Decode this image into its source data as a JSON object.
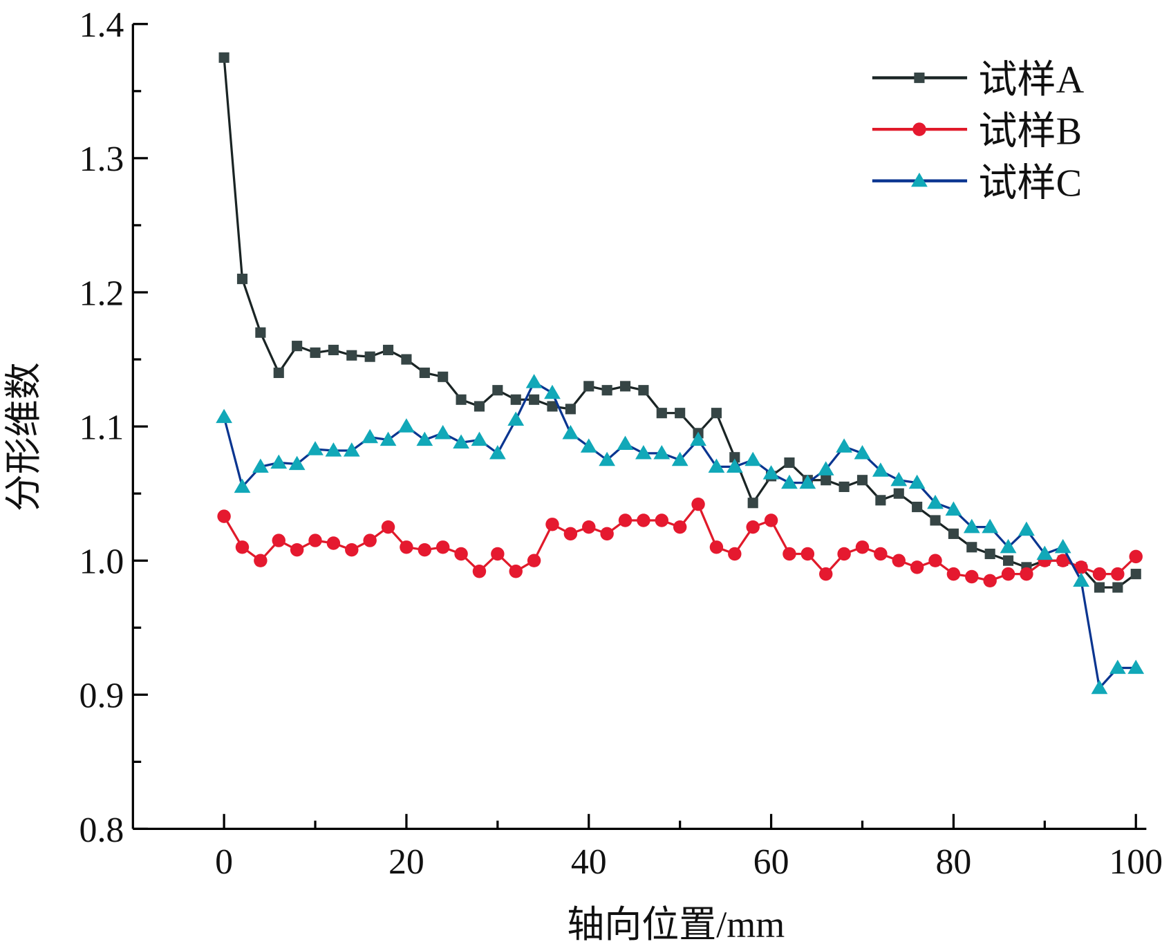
{
  "chart_data": {
    "type": "line",
    "title": "",
    "xlabel": "轴向位置/mm",
    "ylabel": "分形维数",
    "xlim": [
      -10,
      100
    ],
    "ylim": [
      0.8,
      1.4
    ],
    "xticks": [
      0,
      20,
      40,
      60,
      80,
      100
    ],
    "xtick_labels": [
      "0",
      "20",
      "40",
      "60",
      "80",
      "100"
    ],
    "yticks": [
      0.8,
      0.9,
      1.0,
      1.1,
      1.2,
      1.3,
      1.4
    ],
    "ytick_labels": [
      "0.8",
      "0.9",
      "1.0",
      "1.1",
      "1.2",
      "1.3",
      "1.4"
    ],
    "grid": false,
    "legend_position": "top-right",
    "x": [
      0,
      2,
      4,
      6,
      8,
      10,
      12,
      14,
      16,
      18,
      20,
      22,
      24,
      26,
      28,
      30,
      32,
      34,
      36,
      38,
      40,
      42,
      44,
      46,
      48,
      50,
      52,
      54,
      56,
      58,
      60,
      62,
      64,
      66,
      68,
      70,
      72,
      74,
      76,
      78,
      80,
      82,
      84,
      86,
      88,
      90,
      92,
      94,
      96,
      98,
      100
    ],
    "series": [
      {
        "name": "试样A",
        "marker": "square",
        "line_color": "#1a2424",
        "marker_color": "#364545",
        "values": [
          1.375,
          1.21,
          1.17,
          1.14,
          1.16,
          1.155,
          1.157,
          1.153,
          1.152,
          1.157,
          1.15,
          1.14,
          1.137,
          1.12,
          1.115,
          1.127,
          1.12,
          1.12,
          1.115,
          1.113,
          1.13,
          1.127,
          1.13,
          1.127,
          1.11,
          1.11,
          1.095,
          1.11,
          1.077,
          1.043,
          1.063,
          1.073,
          1.06,
          1.06,
          1.055,
          1.06,
          1.045,
          1.05,
          1.04,
          1.03,
          1.02,
          1.01,
          1.005,
          1.0,
          0.995,
          1.0,
          1.0,
          0.995,
          0.98,
          0.98,
          0.99
        ]
      },
      {
        "name": "试样B",
        "marker": "circle",
        "line_color": "#e01a2a",
        "marker_color": "#e5192f",
        "values": [
          1.033,
          1.01,
          1.0,
          1.015,
          1.008,
          1.015,
          1.013,
          1.008,
          1.015,
          1.025,
          1.01,
          1.008,
          1.01,
          1.005,
          0.992,
          1.005,
          0.992,
          1.0,
          1.027,
          1.02,
          1.025,
          1.02,
          1.03,
          1.03,
          1.03,
          1.025,
          1.042,
          1.01,
          1.005,
          1.025,
          1.03,
          1.005,
          1.005,
          0.99,
          1.005,
          1.01,
          1.005,
          1.0,
          0.995,
          1.0,
          0.99,
          0.988,
          0.985,
          0.99,
          0.99,
          1.0,
          1.0,
          0.995,
          0.99,
          0.99,
          1.003
        ]
      },
      {
        "name": "试样C",
        "marker": "triangle",
        "line_color": "#0a3590",
        "marker_color": "#11a8b8",
        "values": [
          1.107,
          1.055,
          1.07,
          1.073,
          1.072,
          1.083,
          1.082,
          1.082,
          1.092,
          1.09,
          1.1,
          1.09,
          1.095,
          1.088,
          1.09,
          1.08,
          1.105,
          1.133,
          1.125,
          1.095,
          1.085,
          1.075,
          1.087,
          1.08,
          1.08,
          1.075,
          1.09,
          1.07,
          1.07,
          1.075,
          1.065,
          1.058,
          1.058,
          1.068,
          1.085,
          1.08,
          1.067,
          1.06,
          1.058,
          1.043,
          1.038,
          1.025,
          1.025,
          1.01,
          1.023,
          1.005,
          1.01,
          0.985,
          0.905,
          0.92,
          0.92
        ]
      }
    ]
  }
}
